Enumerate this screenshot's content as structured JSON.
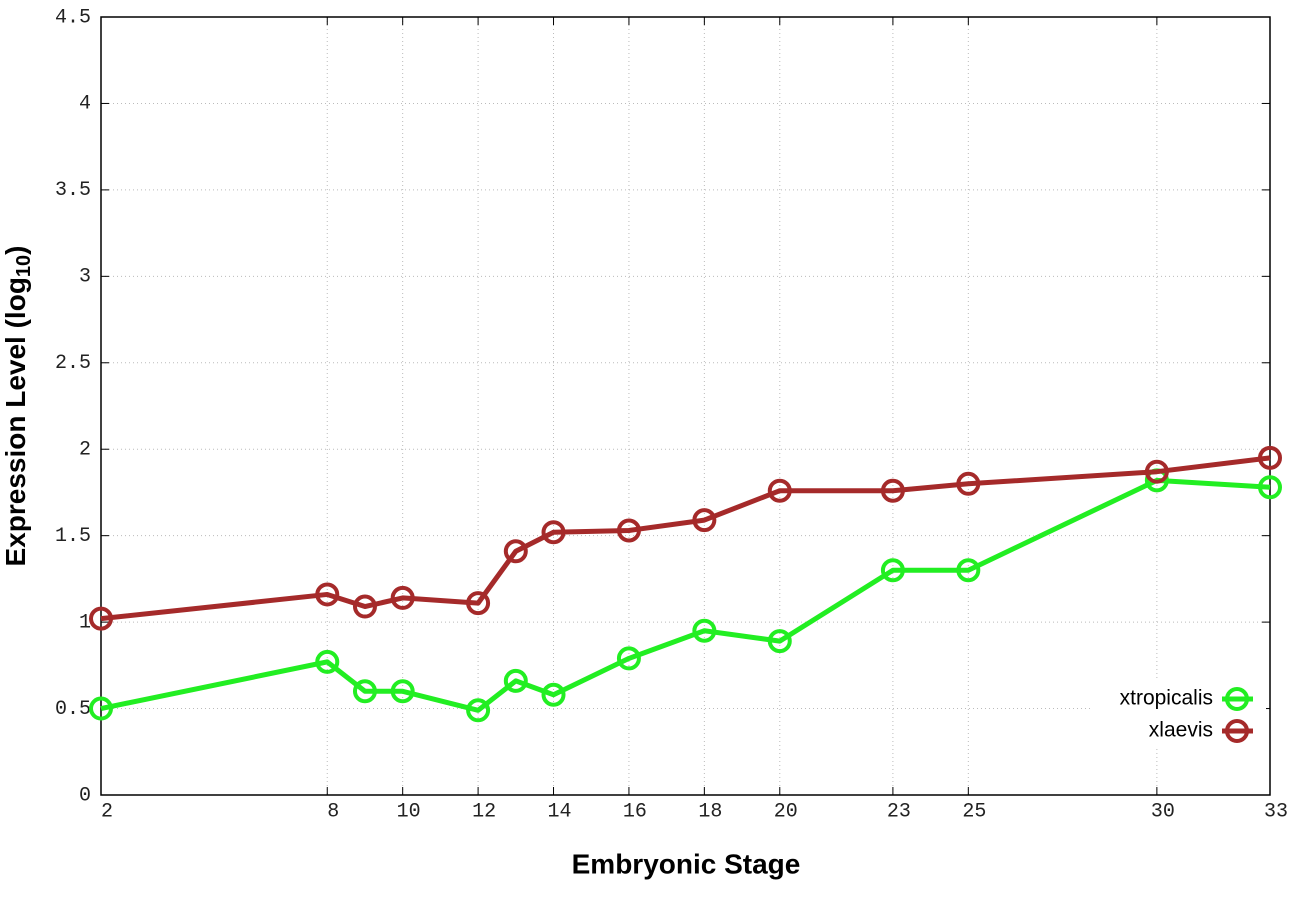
{
  "chart_data": {
    "type": "line",
    "x_label": "Embryonic Stage",
    "y_label": [
      "Expression Level (log",
      "10",
      ")"
    ],
    "x": [
      2,
      8,
      9,
      10,
      12,
      13,
      14,
      16,
      18,
      20,
      23,
      25,
      30,
      33
    ],
    "series": [
      {
        "name": "xtropicalis",
        "color": "#22ee22",
        "values": [
          0.5,
          0.77,
          0.6,
          0.6,
          0.49,
          0.66,
          0.58,
          0.79,
          0.95,
          0.89,
          1.3,
          1.3,
          1.82,
          1.78
        ]
      },
      {
        "name": "xlaevis",
        "color": "#a52a2a",
        "values": [
          1.02,
          1.16,
          1.09,
          1.14,
          1.11,
          1.41,
          1.52,
          1.53,
          1.59,
          1.76,
          1.76,
          1.8,
          1.87,
          1.95
        ]
      }
    ],
    "xlim": [
      2,
      33
    ],
    "xticks": [
      2,
      8,
      10,
      12,
      14,
      16,
      18,
      20,
      23,
      25,
      30,
      33
    ],
    "ylim": [
      0,
      4.5
    ],
    "yticks": [
      0,
      0.5,
      1,
      1.5,
      2,
      2.5,
      3,
      3.5,
      4,
      4.5
    ],
    "grid": true,
    "legend": "lower right"
  }
}
